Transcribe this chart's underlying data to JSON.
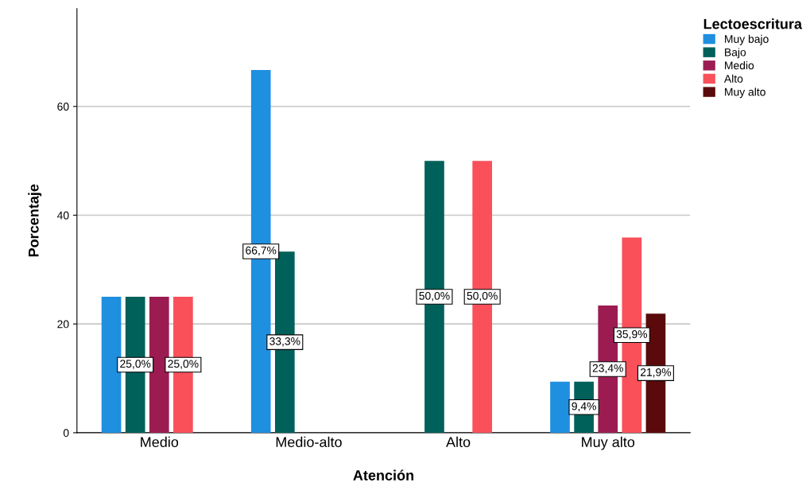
{
  "chart_data": {
    "type": "bar",
    "xlabel": "Atención",
    "ylabel": "Porcentaje",
    "legend_title": "Lectoescritura",
    "categories": [
      "Medio",
      "Medio-alto",
      "Alto",
      "Muy alto"
    ],
    "series": [
      {
        "name": "Muy bajo",
        "color": "#1f8fe0",
        "values": [
          25,
          66.7,
          null,
          9.4
        ],
        "value_labels": [
          null,
          "66,7%",
          null,
          null
        ]
      },
      {
        "name": "Bajo",
        "color": "#00605a",
        "values": [
          25,
          33.3,
          50,
          9.4
        ],
        "value_labels": [
          "25,0%",
          "33,3%",
          "50,0%",
          "9,4%"
        ]
      },
      {
        "name": "Medio",
        "color": "#9c1c52",
        "values": [
          25,
          null,
          null,
          23.4
        ],
        "value_labels": [
          null,
          null,
          null,
          "23,4%"
        ]
      },
      {
        "name": "Alto",
        "color": "#f9505a",
        "values": [
          25,
          null,
          50,
          35.9
        ],
        "value_labels": [
          "25,0%",
          null,
          "50,0%",
          "35,9%"
        ]
      },
      {
        "name": "Muy alto",
        "color": "#5a0a0a",
        "values": [
          null,
          null,
          null,
          21.9
        ],
        "value_labels": [
          null,
          null,
          null,
          "21,9%"
        ]
      }
    ],
    "ylim": [
      0,
      78
    ],
    "yticks": [
      0,
      20,
      40,
      60
    ],
    "grid": "y",
    "legend": "top right"
  }
}
